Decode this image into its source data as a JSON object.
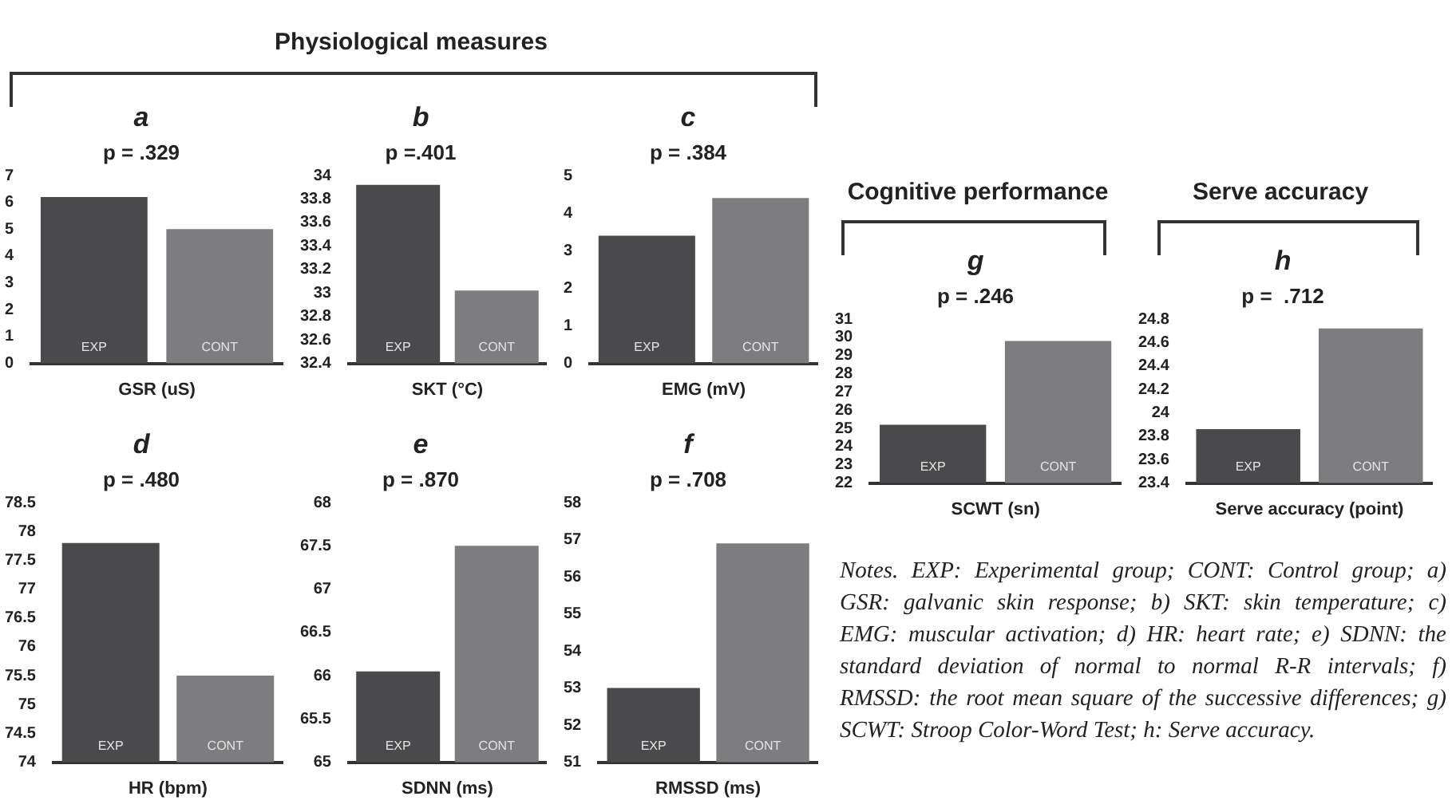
{
  "chart_data": [
    {
      "type": "bar",
      "title": "a",
      "subtitle": "p = .329",
      "xlabel": "GSR (uS)",
      "categories": [
        "EXP",
        "CONT"
      ],
      "values": [
        6.2,
        5.0
      ],
      "colors": [
        "#4a4a4c",
        "#7d7d80"
      ],
      "ylim": [
        0,
        7
      ],
      "yticks": [
        0,
        1,
        2,
        3,
        4,
        5,
        6,
        7
      ],
      "annotations": [
        "Physiological measures"
      ]
    },
    {
      "type": "bar",
      "title": "b",
      "subtitle": "p =.401",
      "xlabel": "SKT (°C)",
      "categories": [
        "EXP",
        "CONT"
      ],
      "values": [
        33.92,
        33.02
      ],
      "colors": [
        "#4a4a4c",
        "#7d7d80"
      ],
      "ylim": [
        32.4,
        34
      ],
      "yticks": [
        32.4,
        32.6,
        32.8,
        33,
        33.2,
        33.4,
        33.6,
        33.8,
        34
      ]
    },
    {
      "type": "bar",
      "title": "c",
      "subtitle": "p = .384",
      "xlabel": "EMG (mV)",
      "categories": [
        "EXP",
        "CONT"
      ],
      "values": [
        3.4,
        4.4
      ],
      "colors": [
        "#4a4a4c",
        "#7d7d80"
      ],
      "ylim": [
        0,
        5
      ],
      "yticks": [
        0,
        1,
        2,
        3,
        4,
        5
      ]
    },
    {
      "type": "bar",
      "title": "d",
      "subtitle": "p = .480",
      "xlabel": "HR (bpm)",
      "categories": [
        "EXP",
        "CONT"
      ],
      "values": [
        77.8,
        75.5
      ],
      "colors": [
        "#4a4a4c",
        "#7d7d80"
      ],
      "ylim": [
        74,
        78.5
      ],
      "yticks": [
        74,
        74.5,
        75,
        75.5,
        76,
        76.5,
        77,
        77.5,
        78,
        78.5
      ]
    },
    {
      "type": "bar",
      "title": "e",
      "subtitle": "p = .870",
      "xlabel": "SDNN (ms)",
      "categories": [
        "EXP",
        "CONT"
      ],
      "values": [
        66.05,
        67.5
      ],
      "colors": [
        "#4a4a4c",
        "#7d7d80"
      ],
      "ylim": [
        65,
        68
      ],
      "yticks": [
        65,
        65.5,
        66,
        66.5,
        67,
        67.5,
        68
      ]
    },
    {
      "type": "bar",
      "title": "f",
      "subtitle": "p = .708",
      "xlabel": "RMSSD (ms)",
      "categories": [
        "EXP",
        "CONT"
      ],
      "values": [
        53.0,
        56.9
      ],
      "colors": [
        "#4a4a4c",
        "#7d7d80"
      ],
      "ylim": [
        51,
        58
      ],
      "yticks": [
        51,
        52,
        53,
        54,
        55,
        56,
        57,
        58
      ]
    },
    {
      "type": "bar",
      "title": "g",
      "subtitle": "p = .246",
      "xlabel": "SCWT (sn)",
      "categories": [
        "EXP",
        "CONT"
      ],
      "values": [
        25.2,
        29.8
      ],
      "colors": [
        "#4a4a4c",
        "#7d7d80"
      ],
      "ylim": [
        22,
        31
      ],
      "yticks": [
        22,
        23,
        24,
        25,
        26,
        27,
        28,
        29,
        30,
        31
      ],
      "annotations": [
        "Cognitive performance"
      ]
    },
    {
      "type": "bar",
      "title": "h",
      "subtitle": "p =  .712",
      "xlabel": "Serve accuracy (point)",
      "categories": [
        "EXP",
        "CONT"
      ],
      "values": [
        23.86,
        24.72
      ],
      "colors": [
        "#4a4a4c",
        "#7d7d80"
      ],
      "ylim": [
        23.4,
        24.8
      ],
      "yticks": [
        23.4,
        23.6,
        23.8,
        24,
        24.2,
        24.4,
        24.6,
        24.8
      ],
      "annotations": [
        "Serve accuracy",
        "Notes. EXP: Experimental group; CONT: Control group; a) GSR: galvanic skin response; b) SKT: skin temperature; c) EMG: muscular activation; d) HR: heart rate; e) SDNN: the standard deviation of normal to normal R-R intervals; f) RMSSD: the root mean square of the successive differences; g) SCWT: Stroop Color-Word Test; h: Serve accuracy."
      ]
    }
  ]
}
